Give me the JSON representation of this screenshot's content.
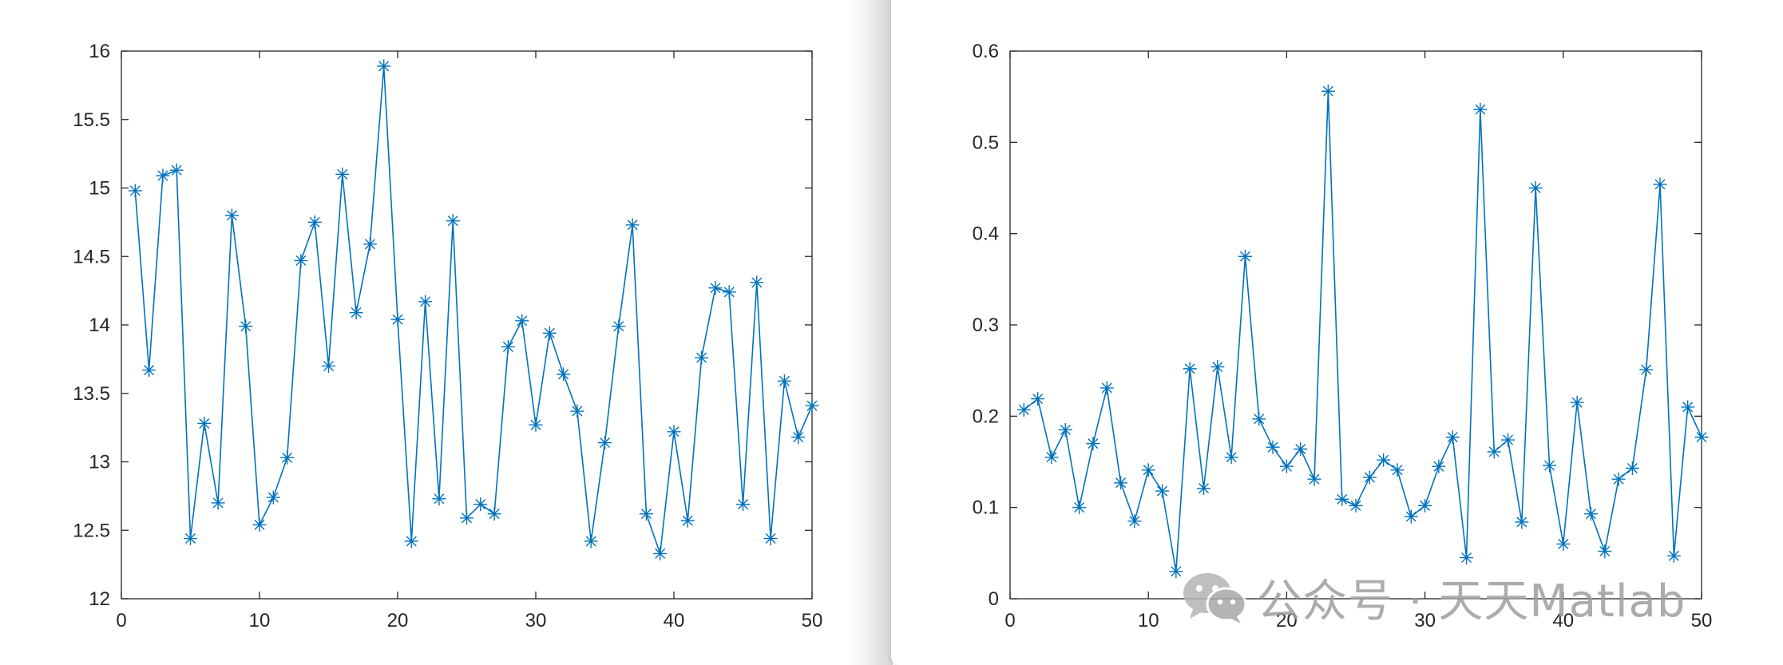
{
  "chart_data": [
    {
      "type": "line",
      "marker": "asterisk",
      "line_color": "#0072BD",
      "title": "",
      "xlabel": "",
      "ylabel": "",
      "xlim": [
        0,
        50
      ],
      "ylim": [
        12,
        16
      ],
      "xticks": [
        0,
        10,
        20,
        30,
        40,
        50
      ],
      "yticks": [
        12,
        12.5,
        13,
        13.5,
        14,
        14.5,
        15,
        15.5,
        16
      ],
      "xtick_labels": [
        "0",
        "10",
        "20",
        "30",
        "40",
        "50"
      ],
      "ytick_labels": [
        "12",
        "12.5",
        "13",
        "13.5",
        "14",
        "14.5",
        "15",
        "15.5",
        "16"
      ],
      "grid": false,
      "x": [
        1,
        2,
        3,
        4,
        5,
        6,
        7,
        8,
        9,
        10,
        11,
        12,
        13,
        14,
        15,
        16,
        17,
        18,
        19,
        20,
        21,
        22,
        23,
        24,
        25,
        26,
        27,
        28,
        29,
        30,
        31,
        32,
        33,
        34,
        35,
        36,
        37,
        38,
        39,
        40,
        41,
        42,
        43,
        44,
        45,
        46,
        47,
        48,
        49,
        50
      ],
      "values": [
        14.98,
        13.67,
        15.09,
        15.13,
        12.44,
        13.28,
        12.7,
        14.8,
        13.99,
        12.54,
        12.74,
        13.03,
        14.47,
        14.75,
        13.7,
        15.1,
        14.09,
        14.59,
        15.89,
        14.04,
        12.42,
        14.17,
        12.73,
        14.76,
        12.59,
        12.69,
        12.62,
        13.84,
        14.03,
        13.27,
        13.94,
        13.64,
        13.37,
        12.42,
        13.14,
        13.99,
        14.73,
        12.62,
        12.33,
        13.22,
        12.57,
        13.76,
        14.27,
        14.24,
        12.69,
        14.31,
        12.44,
        13.59,
        13.18,
        13.41
      ]
    },
    {
      "type": "line",
      "marker": "asterisk",
      "line_color": "#0072BD",
      "title": "",
      "xlabel": "",
      "ylabel": "",
      "xlim": [
        0,
        50
      ],
      "ylim": [
        0,
        0.6
      ],
      "xticks": [
        0,
        10,
        20,
        30,
        40,
        50
      ],
      "yticks": [
        0,
        0.1,
        0.2,
        0.3,
        0.4,
        0.5,
        0.6
      ],
      "xtick_labels": [
        "0",
        "10",
        "20",
        "30",
        "40",
        "50"
      ],
      "ytick_labels": [
        "0",
        "0.1",
        "0.2",
        "0.3",
        "0.4",
        "0.5",
        "0.6"
      ],
      "grid": false,
      "x": [
        1,
        2,
        3,
        4,
        5,
        6,
        7,
        8,
        9,
        10,
        11,
        12,
        13,
        14,
        15,
        16,
        17,
        18,
        19,
        20,
        21,
        22,
        23,
        24,
        25,
        26,
        27,
        28,
        29,
        30,
        31,
        32,
        33,
        34,
        35,
        36,
        37,
        38,
        39,
        40,
        41,
        42,
        43,
        44,
        45,
        46,
        47,
        48,
        49,
        50
      ],
      "values": [
        0.207,
        0.219,
        0.155,
        0.185,
        0.1,
        0.17,
        0.231,
        0.127,
        0.085,
        0.141,
        0.118,
        0.03,
        0.252,
        0.121,
        0.254,
        0.155,
        0.375,
        0.197,
        0.166,
        0.145,
        0.164,
        0.131,
        0.556,
        0.109,
        0.102,
        0.133,
        0.152,
        0.141,
        0.09,
        0.102,
        0.145,
        0.177,
        0.045,
        0.536,
        0.161,
        0.174,
        0.084,
        0.45,
        0.146,
        0.06,
        0.215,
        0.093,
        0.052,
        0.131,
        0.143,
        0.251,
        0.454,
        0.047,
        0.21,
        0.177
      ]
    }
  ],
  "watermark": {
    "icon": "wechat-icon",
    "text": "公众号 · 天天Matlab"
  }
}
